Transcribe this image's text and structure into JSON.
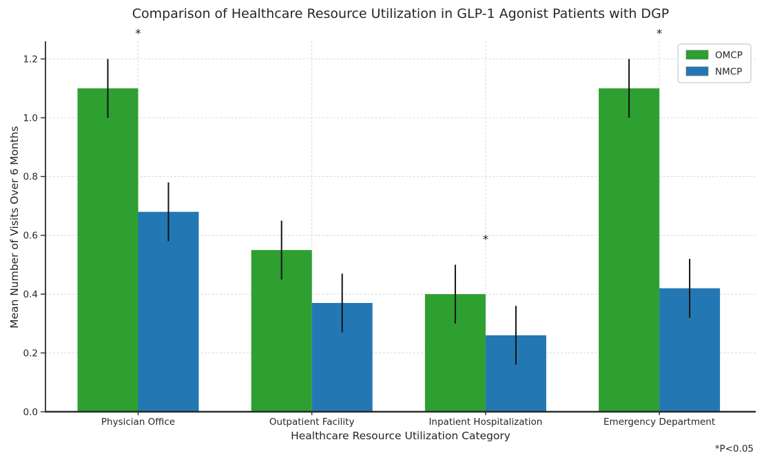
{
  "chart_data": {
    "type": "bar",
    "title": "Comparison of Healthcare Resource Utilization in GLP-1 Agonist Patients with DGP",
    "xlabel": "Healthcare Resource Utilization Category",
    "ylabel": "Mean Number of Visits Over 6 Months",
    "annotation": "*P<0.05",
    "categories": [
      "Physician Office",
      "Outpatient Facility",
      "Inpatient Hospitalization",
      "Emergency Department"
    ],
    "series": [
      {
        "name": "OMCP",
        "color": "#2e9f31",
        "values": [
          1.1,
          0.55,
          0.4,
          1.1
        ],
        "errors": [
          0.1,
          0.1,
          0.1,
          0.1
        ]
      },
      {
        "name": "NMCP",
        "color": "#2378b4",
        "values": [
          0.68,
          0.37,
          0.26,
          0.42
        ],
        "errors": [
          0.1,
          0.1,
          0.1,
          0.1
        ]
      }
    ],
    "significant": [
      true,
      false,
      true,
      true
    ],
    "significance_marker": "*",
    "ytick_values": [
      0.0,
      0.2,
      0.4,
      0.6,
      0.8,
      1.0,
      1.2
    ],
    "ytick_labels": [
      "0.0",
      "0.2",
      "0.4",
      "0.6",
      "0.8",
      "1.0",
      "1.2"
    ],
    "ylim": [
      0,
      1.26
    ],
    "grid": true,
    "legend_position": "upper right",
    "colors": {
      "error_bar": "#111111",
      "grid": "#d6d6d6",
      "axis": "#2a2a2a",
      "text": "#262626",
      "legend_border": "#c9c9c9",
      "background": "#ffffff"
    }
  }
}
